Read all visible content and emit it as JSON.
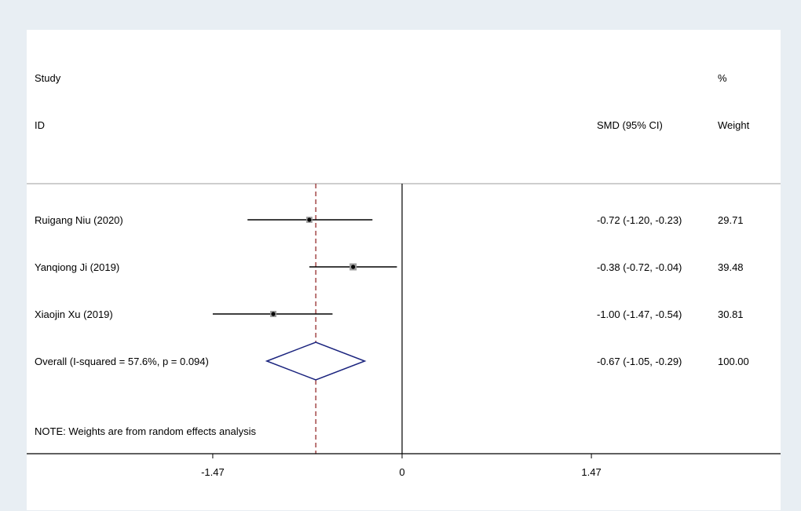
{
  "chart_data": {
    "type": "forest",
    "header": {
      "col1_line1": "Study",
      "col1_line2": "ID",
      "col2": "SMD (95% CI)",
      "col3_line1": "%",
      "col3_line2": "Weight"
    },
    "studies": [
      {
        "label": "Ruigang Niu (2020)",
        "smd": -0.72,
        "lower": -1.2,
        "upper": -0.23,
        "ci_text": "-0.72 (-1.20, -0.23)",
        "weight": 29.71,
        "weight_text": "29.71"
      },
      {
        "label": "Yanqiong Ji (2019)",
        "smd": -0.38,
        "lower": -0.72,
        "upper": -0.04,
        "ci_text": "-0.38 (-0.72, -0.04)",
        "weight": 39.48,
        "weight_text": "39.48"
      },
      {
        "label": "Xiaojin Xu (2019)",
        "smd": -1.0,
        "lower": -1.47,
        "upper": -0.54,
        "ci_text": "-1.00 (-1.47, -0.54)",
        "weight": 30.81,
        "weight_text": "30.81"
      }
    ],
    "overall": {
      "label": "Overall  (I-squared = 57.6%, p = 0.094)",
      "smd": -0.67,
      "lower": -1.05,
      "upper": -0.29,
      "ci_text": "-0.67 (-1.05, -0.29)",
      "weight_text": "100.00"
    },
    "note": "NOTE: Weights are from random effects analysis",
    "x_ticks": [
      {
        "value": -1.47,
        "label": "-1.47"
      },
      {
        "value": 0,
        "label": "0"
      },
      {
        "value": 1.47,
        "label": "1.47"
      }
    ],
    "xlim": [
      -1.47,
      1.47
    ],
    "null_line": 0,
    "colors": {
      "background": "#e8eef3",
      "diamond": "#1a237e",
      "overall_line": "#8b1a1a",
      "box": "#9e9e9e"
    }
  }
}
